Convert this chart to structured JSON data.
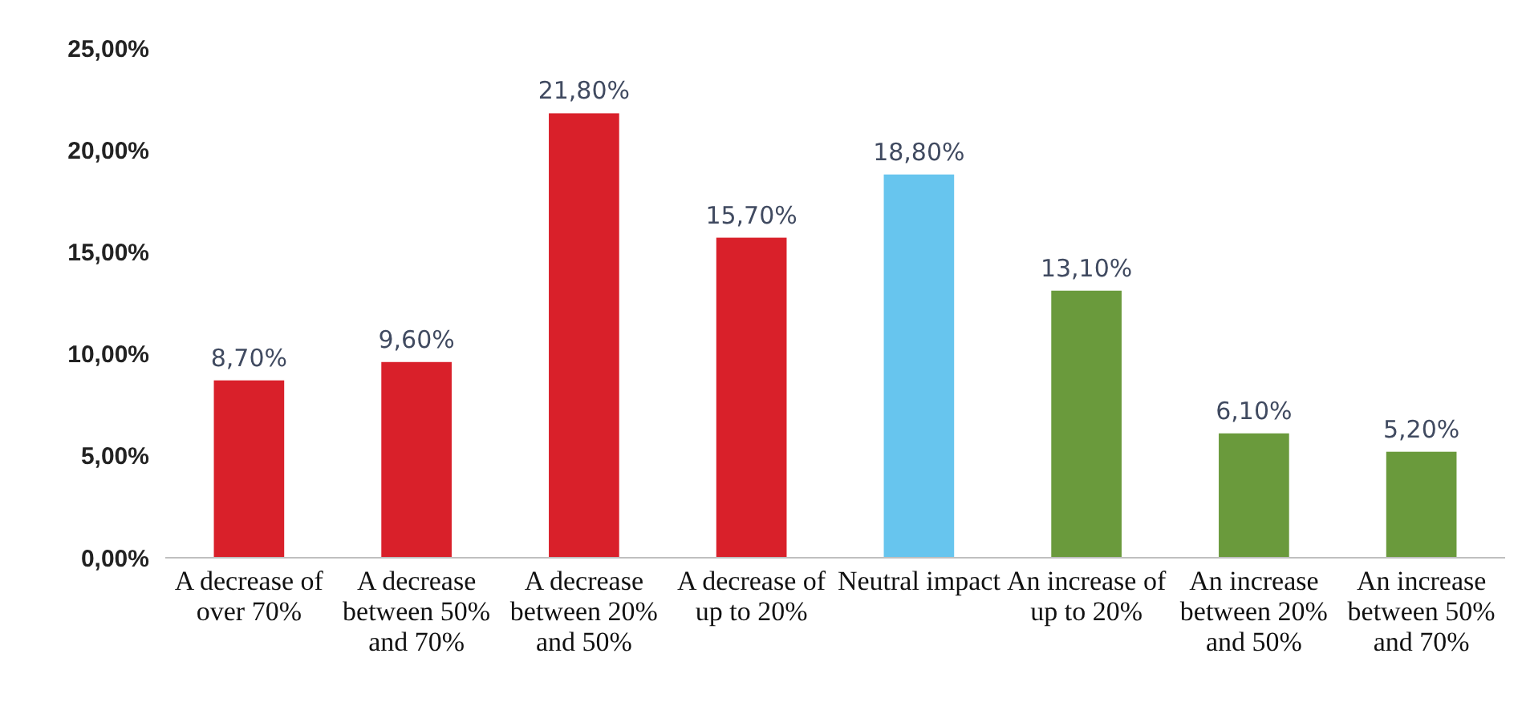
{
  "chart_data": {
    "type": "bar",
    "categories": [
      "A decrease of over 70%",
      "A decrease between 50% and 70%",
      "A decrease between 20% and 50%",
      "A decrease of up to 20%",
      "Neutral impact",
      "An increase of up to 20%",
      "An increase between 20% and 50%",
      "An increase between 50% and 70%"
    ],
    "values": [
      8.7,
      9.6,
      21.8,
      15.7,
      18.8,
      13.1,
      6.1,
      5.2
    ],
    "colors": [
      "#d9202a",
      "#d9202a",
      "#d9202a",
      "#d9202a",
      "#67c5ee",
      "#6a9a3c",
      "#6a9a3c",
      "#6a9a3c"
    ],
    "value_labels": [
      "8,70%",
      "9,60%",
      "21,80%",
      "15,70%",
      "18,80%",
      "13,10%",
      "6,10%",
      "5,20%"
    ],
    "ylim": [
      0,
      25
    ],
    "yticks": [
      {
        "value": 0,
        "label": "0,00%"
      },
      {
        "value": 5,
        "label": "5,00%"
      },
      {
        "value": 10,
        "label": "10,00%"
      },
      {
        "value": 15,
        "label": "15,00%"
      },
      {
        "value": 20,
        "label": "20,00%"
      },
      {
        "value": 25,
        "label": "25,00%"
      }
    ],
    "grid": false
  }
}
